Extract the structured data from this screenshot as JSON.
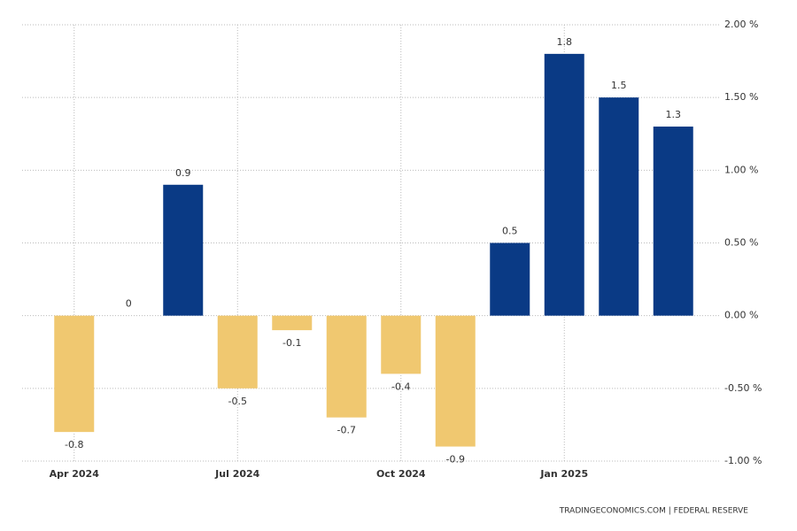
{
  "chart_data": {
    "type": "bar",
    "categories": [
      "Apr 2024",
      null,
      null,
      "Jul 2024",
      null,
      null,
      "Oct 2024",
      null,
      null,
      "Jan 2025",
      null,
      null
    ],
    "values": [
      -0.8,
      0,
      0.9,
      -0.5,
      -0.1,
      -0.7,
      -0.4,
      -0.9,
      0.5,
      1.8,
      1.5,
      1.3
    ],
    "positive_color": "#0a3a85",
    "negative_color": "#f0c870",
    "ylim": [
      -1,
      2
    ],
    "yticks": [
      {
        "value": -1,
        "label": "-1.00 %"
      },
      {
        "value": -0.5,
        "label": "-0.50 %"
      },
      {
        "value": 0,
        "label": "0.00 %"
      },
      {
        "value": 0.5,
        "label": "0.50 %"
      },
      {
        "value": 1,
        "label": "1.00 %"
      },
      {
        "value": 1.5,
        "label": "1.50 %"
      },
      {
        "value": 2,
        "label": "2.00 %"
      }
    ],
    "grid": true,
    "source": "TRADINGECONOMICS.COM  |  FEDERAL RESERVE"
  }
}
